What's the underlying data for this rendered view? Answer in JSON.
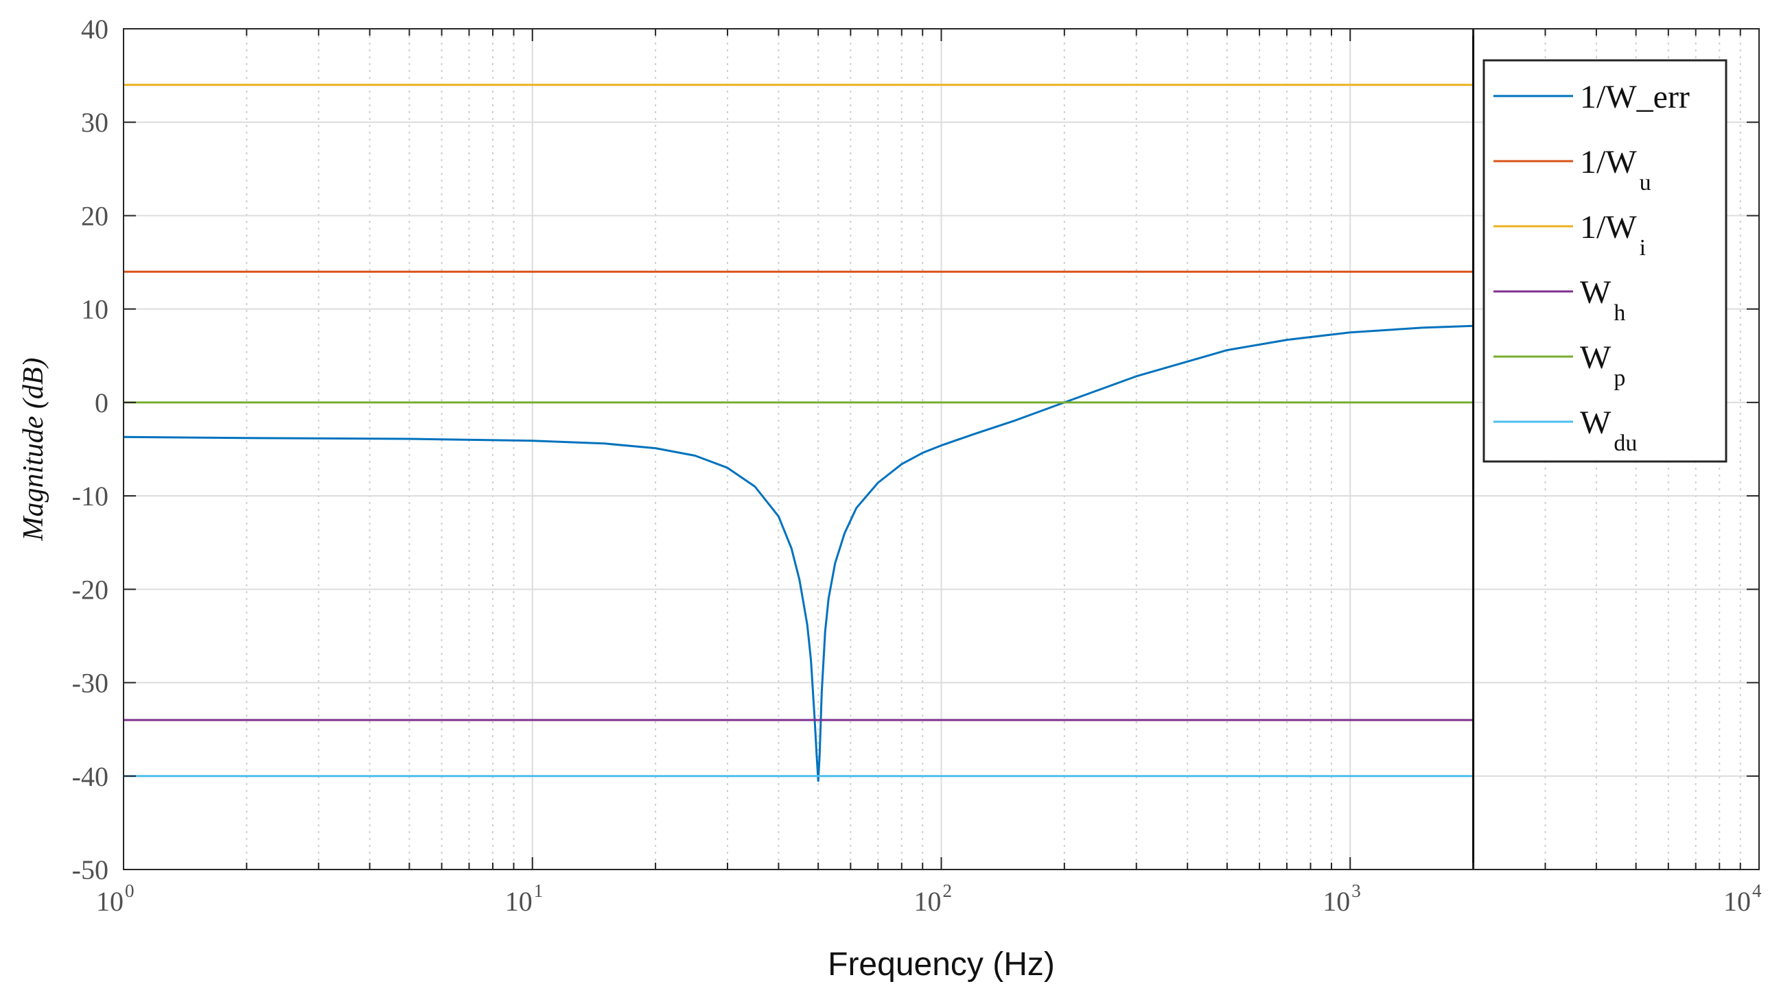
{
  "chart_data": {
    "type": "line",
    "xscale": "log",
    "title": "",
    "xlabel": "Frequency  (Hz)",
    "ylabel": "Magnitude (dB)",
    "xlim": [
      1,
      10000
    ],
    "ylim": [
      -50,
      40
    ],
    "grid": true,
    "legend_position": "top-right",
    "x_ticks": [
      {
        "base": "10",
        "exp": "0",
        "value": 1
      },
      {
        "base": "10",
        "exp": "1",
        "value": 10
      },
      {
        "base": "10",
        "exp": "2",
        "value": 100
      },
      {
        "base": "10",
        "exp": "3",
        "value": 1000
      },
      {
        "base": "10",
        "exp": "4",
        "value": 10000
      }
    ],
    "y_ticks": [
      "40",
      "30",
      "20",
      "10",
      "0",
      "-10",
      "-20",
      "-30",
      "-40",
      "-50"
    ],
    "y_tick_values": [
      40,
      30,
      20,
      10,
      0,
      -10,
      -20,
      -30,
      -40,
      -50
    ],
    "vertical_line_x": 2000,
    "series": [
      {
        "name": "1/W_err",
        "legend_main": "1/W_err",
        "legend_sub": "",
        "color": "#0072BD",
        "x": [
          1,
          2,
          5,
          10,
          15,
          20,
          25,
          30,
          35,
          40,
          43,
          45,
          47,
          48,
          49,
          49.6,
          50,
          50.4,
          51,
          52,
          53,
          55,
          58,
          62,
          70,
          80,
          90,
          100,
          120,
          150,
          200,
          300,
          500,
          700,
          1000,
          1500,
          2000
        ],
        "y": [
          -3.7,
          -3.8,
          -3.9,
          -4.1,
          -4.4,
          -4.9,
          -5.7,
          -7.0,
          -9.0,
          -12.2,
          -15.6,
          -19.0,
          -23.8,
          -27.6,
          -33.8,
          -38.0,
          -40.5,
          -37.8,
          -31.0,
          -24.5,
          -21.0,
          -17.2,
          -14.0,
          -11.3,
          -8.6,
          -6.6,
          -5.4,
          -4.6,
          -3.4,
          -2.0,
          0.0,
          2.8,
          5.6,
          6.7,
          7.5,
          8.0,
          8.2
        ]
      },
      {
        "name": "1/W_u",
        "legend_main": "1/W",
        "legend_sub": "u",
        "color": "#D95319",
        "x": [
          1,
          2000
        ],
        "y": [
          14,
          14
        ]
      },
      {
        "name": "1/W_i",
        "legend_main": "1/W",
        "legend_sub": "i",
        "color": "#EDB120",
        "x": [
          1,
          2000
        ],
        "y": [
          34,
          34
        ]
      },
      {
        "name": "W_h",
        "legend_main": "W",
        "legend_sub": "h",
        "color": "#7E2F8E",
        "x": [
          1,
          2000
        ],
        "y": [
          -34,
          -34
        ]
      },
      {
        "name": "W_p",
        "legend_main": "W",
        "legend_sub": "p",
        "color": "#77AC30",
        "x": [
          1,
          2000
        ],
        "y": [
          0,
          0
        ]
      },
      {
        "name": "W_du",
        "legend_main": "W",
        "legend_sub": "du",
        "color": "#4DBEEE",
        "x": [
          1,
          2000
        ],
        "y": [
          -40,
          -40
        ]
      }
    ]
  }
}
